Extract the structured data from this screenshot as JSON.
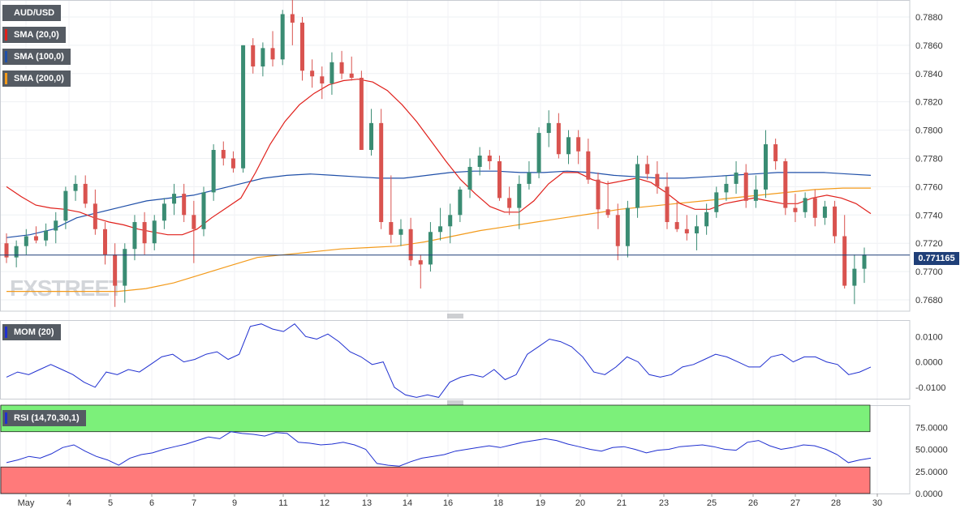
{
  "chart_data": {
    "type": "candlestick",
    "symbol": "AUD/USD",
    "last_price": "0.771165",
    "watermark": "FXSTREET",
    "x_labels": [
      "May",
      "4",
      "5",
      "6",
      "7",
      "9",
      "11",
      "12",
      "13",
      "14",
      "16",
      "18",
      "19",
      "20",
      "21",
      "23",
      "25",
      "26",
      "27",
      "28",
      "30"
    ],
    "price_axis": {
      "ylim": [
        0.7672,
        0.7892
      ],
      "ticks": [
        "0.7880",
        "0.7860",
        "0.7840",
        "0.7820",
        "0.7800",
        "0.7780",
        "0.7760",
        "0.7740",
        "0.7720",
        "0.7700",
        "0.7680"
      ]
    },
    "indicators": [
      {
        "label": "SMA (20,0)",
        "color": "#e0201b"
      },
      {
        "label": "SMA (100,0)",
        "color": "#1f4fa8"
      },
      {
        "label": "SMA (200,0)",
        "color": "#f39a1a"
      }
    ],
    "candles": [
      [
        0.772,
        0.7727,
        0.7706,
        0.771
      ],
      [
        0.771,
        0.7722,
        0.7703,
        0.7718
      ],
      [
        0.7718,
        0.773,
        0.7712,
        0.7725
      ],
      [
        0.7725,
        0.7732,
        0.772,
        0.7722
      ],
      [
        0.7722,
        0.7734,
        0.7718,
        0.7729
      ],
      [
        0.7729,
        0.7742,
        0.772,
        0.7736
      ],
      [
        0.7736,
        0.776,
        0.773,
        0.7757
      ],
      [
        0.7757,
        0.7768,
        0.775,
        0.7762
      ],
      [
        0.7762,
        0.7768,
        0.7745,
        0.7748
      ],
      [
        0.7748,
        0.7758,
        0.7726,
        0.773
      ],
      [
        0.773,
        0.7735,
        0.7705,
        0.7712
      ],
      [
        0.7712,
        0.772,
        0.7675,
        0.769
      ],
      [
        0.769,
        0.772,
        0.7678,
        0.7716
      ],
      [
        0.7716,
        0.774,
        0.7708,
        0.7735
      ],
      [
        0.7735,
        0.7742,
        0.7712,
        0.772
      ],
      [
        0.772,
        0.774,
        0.7715,
        0.7736
      ],
      [
        0.7736,
        0.7752,
        0.773,
        0.7748
      ],
      [
        0.7748,
        0.7762,
        0.774,
        0.7755
      ],
      [
        0.7755,
        0.7762,
        0.7735,
        0.774
      ],
      [
        0.774,
        0.775,
        0.7706,
        0.773
      ],
      [
        0.773,
        0.776,
        0.7725,
        0.7756
      ],
      [
        0.7756,
        0.779,
        0.775,
        0.7786
      ],
      [
        0.7786,
        0.7792,
        0.7775,
        0.778
      ],
      [
        0.778,
        0.7785,
        0.777,
        0.7773
      ],
      [
        0.7773,
        0.786,
        0.777,
        0.786
      ],
      [
        0.786,
        0.7865,
        0.784,
        0.7845
      ],
      [
        0.7845,
        0.7862,
        0.7838,
        0.7858
      ],
      [
        0.7858,
        0.787,
        0.7845,
        0.785
      ],
      [
        0.785,
        0.7885,
        0.7846,
        0.7882
      ],
      [
        0.7882,
        0.7892,
        0.786,
        0.7876
      ],
      [
        0.7876,
        0.788,
        0.7835,
        0.7842
      ],
      [
        0.7842,
        0.785,
        0.783,
        0.7838
      ],
      [
        0.7838,
        0.7845,
        0.7822,
        0.7833
      ],
      [
        0.7833,
        0.7855,
        0.7825,
        0.7848
      ],
      [
        0.7848,
        0.7856,
        0.7836,
        0.784
      ],
      [
        0.784,
        0.7852,
        0.7835,
        0.7837
      ],
      [
        0.7837,
        0.7842,
        0.7786,
        0.7786
      ],
      [
        0.7786,
        0.7815,
        0.7782,
        0.7805
      ],
      [
        0.7805,
        0.7815,
        0.773,
        0.7735
      ],
      [
        0.7735,
        0.7768,
        0.772,
        0.7726
      ],
      [
        0.7726,
        0.7737,
        0.7718,
        0.773
      ],
      [
        0.773,
        0.7738,
        0.7704,
        0.7708
      ],
      [
        0.7708,
        0.7712,
        0.7688,
        0.7705
      ],
      [
        0.7705,
        0.7735,
        0.77,
        0.7728
      ],
      [
        0.7728,
        0.7745,
        0.7722,
        0.7732
      ],
      [
        0.7732,
        0.7748,
        0.772,
        0.774
      ],
      [
        0.774,
        0.776,
        0.7735,
        0.7758
      ],
      [
        0.7758,
        0.778,
        0.7752,
        0.7774
      ],
      [
        0.7774,
        0.7788,
        0.7768,
        0.7782
      ],
      [
        0.7782,
        0.7786,
        0.7772,
        0.7778
      ],
      [
        0.7778,
        0.7782,
        0.775,
        0.7752
      ],
      [
        0.7752,
        0.776,
        0.774,
        0.7745
      ],
      [
        0.7745,
        0.7768,
        0.773,
        0.7762
      ],
      [
        0.7762,
        0.7778,
        0.7758,
        0.777
      ],
      [
        0.777,
        0.7802,
        0.7766,
        0.7798
      ],
      [
        0.7798,
        0.7814,
        0.7788,
        0.7805
      ],
      [
        0.7805,
        0.7812,
        0.778,
        0.7783
      ],
      [
        0.7783,
        0.78,
        0.7776,
        0.7795
      ],
      [
        0.7795,
        0.78,
        0.7776,
        0.7785
      ],
      [
        0.7785,
        0.7794,
        0.7762,
        0.7765
      ],
      [
        0.7765,
        0.777,
        0.773,
        0.7744
      ],
      [
        0.7744,
        0.7764,
        0.7738,
        0.774
      ],
      [
        0.774,
        0.7748,
        0.7708,
        0.7718
      ],
      [
        0.7718,
        0.775,
        0.771,
        0.7745
      ],
      [
        0.7745,
        0.7782,
        0.7738,
        0.7776
      ],
      [
        0.7776,
        0.7782,
        0.7765,
        0.7769
      ],
      [
        0.7769,
        0.7778,
        0.7755,
        0.776
      ],
      [
        0.776,
        0.777,
        0.773,
        0.7735
      ],
      [
        0.7735,
        0.775,
        0.7728,
        0.773
      ],
      [
        0.773,
        0.774,
        0.7722,
        0.7727
      ],
      [
        0.7727,
        0.774,
        0.7715,
        0.7732
      ],
      [
        0.7732,
        0.7748,
        0.7726,
        0.7742
      ],
      [
        0.7742,
        0.776,
        0.7738,
        0.7756
      ],
      [
        0.7756,
        0.7768,
        0.775,
        0.7762
      ],
      [
        0.7762,
        0.7778,
        0.7755,
        0.777
      ],
      [
        0.777,
        0.7776,
        0.7745,
        0.775
      ],
      [
        0.775,
        0.7768,
        0.7745,
        0.7758
      ],
      [
        0.7758,
        0.78,
        0.7752,
        0.779
      ],
      [
        0.779,
        0.7794,
        0.7772,
        0.7778
      ],
      [
        0.7778,
        0.778,
        0.774,
        0.7745
      ],
      [
        0.7745,
        0.7755,
        0.7735,
        0.7742
      ],
      [
        0.7742,
        0.7756,
        0.7738,
        0.7752
      ],
      [
        0.7752,
        0.7758,
        0.7732,
        0.7738
      ],
      [
        0.7738,
        0.775,
        0.7733,
        0.7746
      ],
      [
        0.7746,
        0.775,
        0.772,
        0.7725
      ],
      [
        0.7725,
        0.774,
        0.7688,
        0.769
      ],
      [
        0.769,
        0.7712,
        0.7677,
        0.7702
      ],
      [
        0.7702,
        0.7717,
        0.7692,
        0.7712
      ]
    ],
    "sma20": [
      0.776,
      0.7753,
      0.7747,
      0.7745,
      0.7744,
      0.7742,
      0.7738,
      0.7735,
      0.7733,
      0.773,
      0.7728,
      0.7726,
      0.7726,
      0.773,
      0.7738,
      0.7745,
      0.7752,
      0.777,
      0.779,
      0.7806,
      0.7818,
      0.7826,
      0.7832,
      0.7835,
      0.7836,
      0.7834,
      0.7828,
      0.7818,
      0.7806,
      0.7792,
      0.7778,
      0.7765,
      0.7755,
      0.7746,
      0.7742,
      0.7742,
      0.775,
      0.7762,
      0.777,
      0.777,
      0.7765,
      0.7762,
      0.7764,
      0.7766,
      0.7763,
      0.7756,
      0.7748,
      0.7744,
      0.7744,
      0.7748,
      0.775,
      0.7752,
      0.775,
      0.7748,
      0.7748,
      0.7752,
      0.7754,
      0.7752,
      0.7748,
      0.7741
    ],
    "sma100": [
      0.7724,
      0.7726,
      0.773,
      0.7738,
      0.7742,
      0.7746,
      0.775,
      0.7752,
      0.7754,
      0.7758,
      0.7762,
      0.7766,
      0.7768,
      0.7769,
      0.7768,
      0.7767,
      0.7766,
      0.7766,
      0.7768,
      0.777,
      0.7771,
      0.7771,
      0.777,
      0.777,
      0.7771,
      0.777,
      0.7768,
      0.7767,
      0.7766,
      0.7766,
      0.7767,
      0.7768,
      0.7769,
      0.777,
      0.777,
      0.777,
      0.7769,
      0.7768
    ],
    "sma200": [
      0.7686,
      0.7686,
      0.7686,
      0.7686,
      0.7686,
      0.7688,
      0.7692,
      0.7698,
      0.7704,
      0.771,
      0.7712,
      0.7714,
      0.7716,
      0.7717,
      0.7718,
      0.7721,
      0.7725,
      0.7729,
      0.7732,
      0.7735,
      0.7738,
      0.7741,
      0.7744,
      0.7746,
      0.7748,
      0.775,
      0.7752,
      0.7754,
      0.7756,
      0.7758,
      0.7759,
      0.7759
    ],
    "mom": {
      "label": "MOM (20)",
      "color": "#1f2fd0",
      "ylim": [
        -0.0145,
        0.0165
      ],
      "ticks": [
        "0.0100",
        "0.0000",
        "-0.0100"
      ],
      "values": [
        -0.006,
        -0.004,
        -0.005,
        -0.003,
        -0.001,
        -0.003,
        -0.005,
        -0.008,
        -0.01,
        -0.004,
        -0.005,
        -0.003,
        -0.004,
        -0.001,
        0.002,
        0.003,
        0.0,
        0.001,
        0.003,
        0.004,
        0.001,
        0.003,
        0.014,
        0.015,
        0.013,
        0.012,
        0.015,
        0.01,
        0.009,
        0.011,
        0.008,
        0.004,
        0.002,
        -0.001,
        0.0,
        -0.01,
        -0.013,
        -0.014,
        -0.013,
        -0.014,
        -0.008,
        -0.006,
        -0.005,
        -0.006,
        -0.003,
        -0.007,
        -0.005,
        0.003,
        0.006,
        0.009,
        0.008,
        0.006,
        0.002,
        -0.004,
        -0.005,
        -0.002,
        0.002,
        0.0,
        -0.005,
        -0.006,
        -0.005,
        -0.002,
        -0.001,
        0.001,
        0.003,
        0.002,
        0.0,
        -0.002,
        -0.002,
        0.002,
        0.003,
        0.0,
        0.002,
        0.002,
        0.0,
        -0.001,
        -0.005,
        -0.004,
        -0.002
      ]
    },
    "rsi": {
      "label": "RSI (14,70,30,1)",
      "color": "#1f2fd0",
      "ylim": [
        0,
        100
      ],
      "ticks": [
        "75.0000",
        "50.0000",
        "25.0000",
        "0.0000"
      ],
      "overbought": 70,
      "oversold": 30,
      "overbought_color": "#7cf07a",
      "oversold_color": "#ff7a7a",
      "values": [
        35,
        38,
        42,
        40,
        45,
        52,
        55,
        48,
        42,
        38,
        32,
        40,
        44,
        46,
        50,
        53,
        56,
        60,
        64,
        62,
        70,
        68,
        67,
        65,
        69,
        68,
        58,
        57,
        55,
        56,
        58,
        55,
        50,
        34,
        32,
        31,
        36,
        40,
        42,
        44,
        48,
        50,
        52,
        54,
        52,
        55,
        58,
        60,
        62,
        60,
        56,
        53,
        50,
        48,
        52,
        53,
        50,
        46,
        49,
        50,
        53,
        54,
        55,
        53,
        50,
        49,
        58,
        60,
        54,
        50,
        52,
        55,
        54,
        50,
        44,
        35,
        38,
        40
      ]
    },
    "grid": true
  },
  "axis_tag_color": "#1f3f78"
}
